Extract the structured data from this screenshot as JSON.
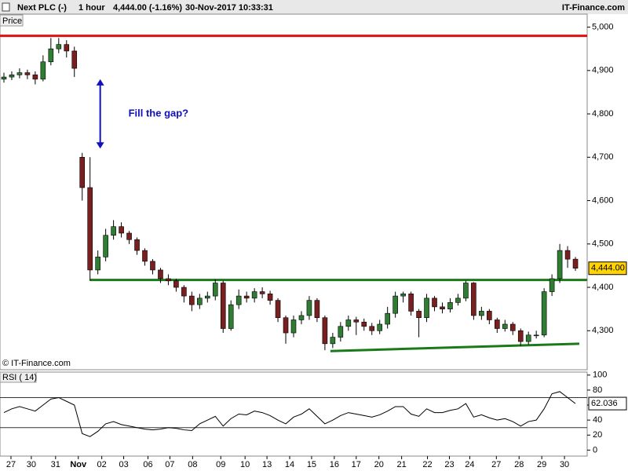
{
  "chart_data": {
    "type": "candlestick",
    "header": {
      "symbol": "Next PLC (-)",
      "interval": "1 hour",
      "quote": "4,444.00 (-1.16%)",
      "timestamp": "30-Nov-2017 10:33:31",
      "brand": "IT-Finance.com"
    },
    "price_label": "Price",
    "watermark": "© IT-Finance.com",
    "up_color": "#2e7d32",
    "down_color": "#7a1f1f",
    "xlim": [
      0,
      75
    ],
    "xticks": [
      {
        "value": 1.4,
        "label": "27"
      },
      {
        "value": 4.0,
        "label": "30"
      },
      {
        "value": 7.1,
        "label": "31"
      },
      {
        "value": 10.0,
        "label": "Nov"
      },
      {
        "value": 13.0,
        "label": "02"
      },
      {
        "value": 15.8,
        "label": "03"
      },
      {
        "value": 18.9,
        "label": "06"
      },
      {
        "value": 21.7,
        "label": "07"
      },
      {
        "value": 24.6,
        "label": "08"
      },
      {
        "value": 28.2,
        "label": "09"
      },
      {
        "value": 31.3,
        "label": "10"
      },
      {
        "value": 34.1,
        "label": "13"
      },
      {
        "value": 37.0,
        "label": "14"
      },
      {
        "value": 39.8,
        "label": "15"
      },
      {
        "value": 42.7,
        "label": "16"
      },
      {
        "value": 45.5,
        "label": "17"
      },
      {
        "value": 48.4,
        "label": "20"
      },
      {
        "value": 51.3,
        "label": "21"
      },
      {
        "value": 54.6,
        "label": "22"
      },
      {
        "value": 57.4,
        "label": "23"
      },
      {
        "value": 60.0,
        "label": "24"
      },
      {
        "value": 63.4,
        "label": "27"
      },
      {
        "value": 66.3,
        "label": "28"
      },
      {
        "value": 69.2,
        "label": "29"
      },
      {
        "value": 72.1,
        "label": "30"
      }
    ],
    "ylim": [
      4210,
      5030
    ],
    "yticks": [
      {
        "value": 4300,
        "label": "4,300"
      },
      {
        "value": 4400,
        "label": "4,400"
      },
      {
        "value": 4500,
        "label": "4,500"
      },
      {
        "value": 4600,
        "label": "4,600"
      },
      {
        "value": 4700,
        "label": "4,700"
      },
      {
        "value": 4800,
        "label": "4,800"
      },
      {
        "value": 4900,
        "label": "4,900"
      },
      {
        "value": 5000,
        "label": "5,000"
      }
    ],
    "last_price": {
      "value": 4444,
      "label": "4,444.00"
    },
    "open": [
      4880,
      4885,
      4890,
      4895,
      4890,
      4880,
      4920,
      4950,
      4960,
      4945,
      4700,
      4630,
      4440,
      4470,
      4520,
      4540,
      4525,
      4510,
      4485,
      4460,
      4440,
      4420,
      4415,
      4400,
      4380,
      4360,
      4375,
      4380,
      4410,
      4305,
      4360,
      4380,
      4375,
      4390,
      4385,
      4370,
      4330,
      4295,
      4325,
      4335,
      4370,
      4330,
      4270,
      4285,
      4310,
      4325,
      4320,
      4310,
      4300,
      4315,
      4340,
      4380,
      4385,
      4345,
      4330,
      4375,
      4355,
      4350,
      4365,
      4375,
      4410,
      4335,
      4345,
      4325,
      4305,
      4315,
      4300,
      4275,
      4290,
      4290,
      4390,
      4420,
      4485,
      4465
    ],
    "high": [
      4895,
      4898,
      4905,
      4902,
      4898,
      4935,
      4975,
      4975,
      4970,
      4955,
      4710,
      4700,
      4485,
      4535,
      4555,
      4550,
      4530,
      4515,
      4490,
      4465,
      4445,
      4430,
      4420,
      4405,
      4390,
      4385,
      4390,
      4418,
      4415,
      4370,
      4395,
      4390,
      4398,
      4400,
      4392,
      4375,
      4335,
      4335,
      4345,
      4380,
      4375,
      4335,
      4295,
      4320,
      4335,
      4332,
      4328,
      4318,
      4325,
      4355,
      4390,
      4390,
      4390,
      4350,
      4385,
      4380,
      4365,
      4375,
      4385,
      4415,
      4412,
      4355,
      4350,
      4330,
      4325,
      4320,
      4305,
      4298,
      4300,
      4398,
      4430,
      4500,
      4495,
      4470
    ],
    "low": [
      4872,
      4878,
      4882,
      4880,
      4868,
      4875,
      4912,
      4940,
      4930,
      4885,
      4600,
      4415,
      4430,
      4460,
      4510,
      4515,
      4500,
      4475,
      4450,
      4430,
      4410,
      4405,
      4390,
      4365,
      4345,
      4350,
      4365,
      4370,
      4295,
      4300,
      4350,
      4365,
      4365,
      4375,
      4360,
      4320,
      4270,
      4285,
      4315,
      4325,
      4320,
      4255,
      4260,
      4275,
      4300,
      4290,
      4300,
      4290,
      4292,
      4305,
      4330,
      4365,
      4335,
      4285,
      4320,
      4345,
      4340,
      4342,
      4358,
      4368,
      4325,
      4325,
      4315,
      4295,
      4298,
      4290,
      4265,
      4268,
      4282,
      4285,
      4380,
      4410,
      4445,
      4438
    ],
    "close": [
      4885,
      4890,
      4895,
      4890,
      4880,
      4920,
      4950,
      4960,
      4945,
      4905,
      4630,
      4440,
      4470,
      4520,
      4540,
      4525,
      4510,
      4485,
      4460,
      4440,
      4420,
      4415,
      4400,
      4380,
      4360,
      4375,
      4380,
      4410,
      4305,
      4360,
      4380,
      4375,
      4390,
      4385,
      4370,
      4330,
      4295,
      4325,
      4335,
      4370,
      4330,
      4270,
      4285,
      4310,
      4325,
      4320,
      4310,
      4300,
      4315,
      4340,
      4380,
      4385,
      4345,
      4330,
      4375,
      4355,
      4350,
      4365,
      4375,
      4410,
      4335,
      4345,
      4325,
      4305,
      4315,
      4300,
      4275,
      4290,
      4290,
      4390,
      4420,
      4485,
      4465,
      4444
    ],
    "lines": [
      {
        "color": "#e01010",
        "x": [
          0,
          75
        ],
        "y": [
          4980,
          4980
        ]
      },
      {
        "color": "#1a7a1a",
        "x": [
          11.5,
          75
        ],
        "y": [
          4417,
          4417
        ]
      },
      {
        "color": "#1a7a1a",
        "x": [
          42.2,
          74
        ],
        "y": [
          4253,
          4270
        ]
      }
    ],
    "arrow": {
      "color": "#1010c0",
      "x": 12.8,
      "y": [
        4880,
        4720
      ]
    },
    "annotation": {
      "text": "Fill the gap?",
      "x": 16.4,
      "y": 4800,
      "color": "#1010c0"
    },
    "rsi": {
      "label": "RSI ( 14)",
      "color": "#000000",
      "ylim": [
        -8,
        104
      ],
      "yticks": [
        0,
        20,
        40,
        60,
        80,
        100
      ],
      "levels": [
        30,
        70
      ],
      "values": [
        50,
        55,
        58,
        55,
        52,
        60,
        68,
        70,
        65,
        60,
        22,
        18,
        25,
        35,
        38,
        34,
        32,
        30,
        28,
        27,
        28,
        30,
        29,
        27,
        26,
        35,
        40,
        45,
        32,
        42,
        48,
        47,
        52,
        50,
        46,
        40,
        35,
        44,
        48,
        55,
        45,
        35,
        40,
        46,
        50,
        48,
        46,
        44,
        47,
        52,
        58,
        58,
        48,
        45,
        55,
        50,
        50,
        53,
        55,
        62,
        44,
        47,
        43,
        40,
        42,
        38,
        32,
        38,
        40,
        55,
        75,
        78,
        70,
        62.036
      ]
    }
  }
}
